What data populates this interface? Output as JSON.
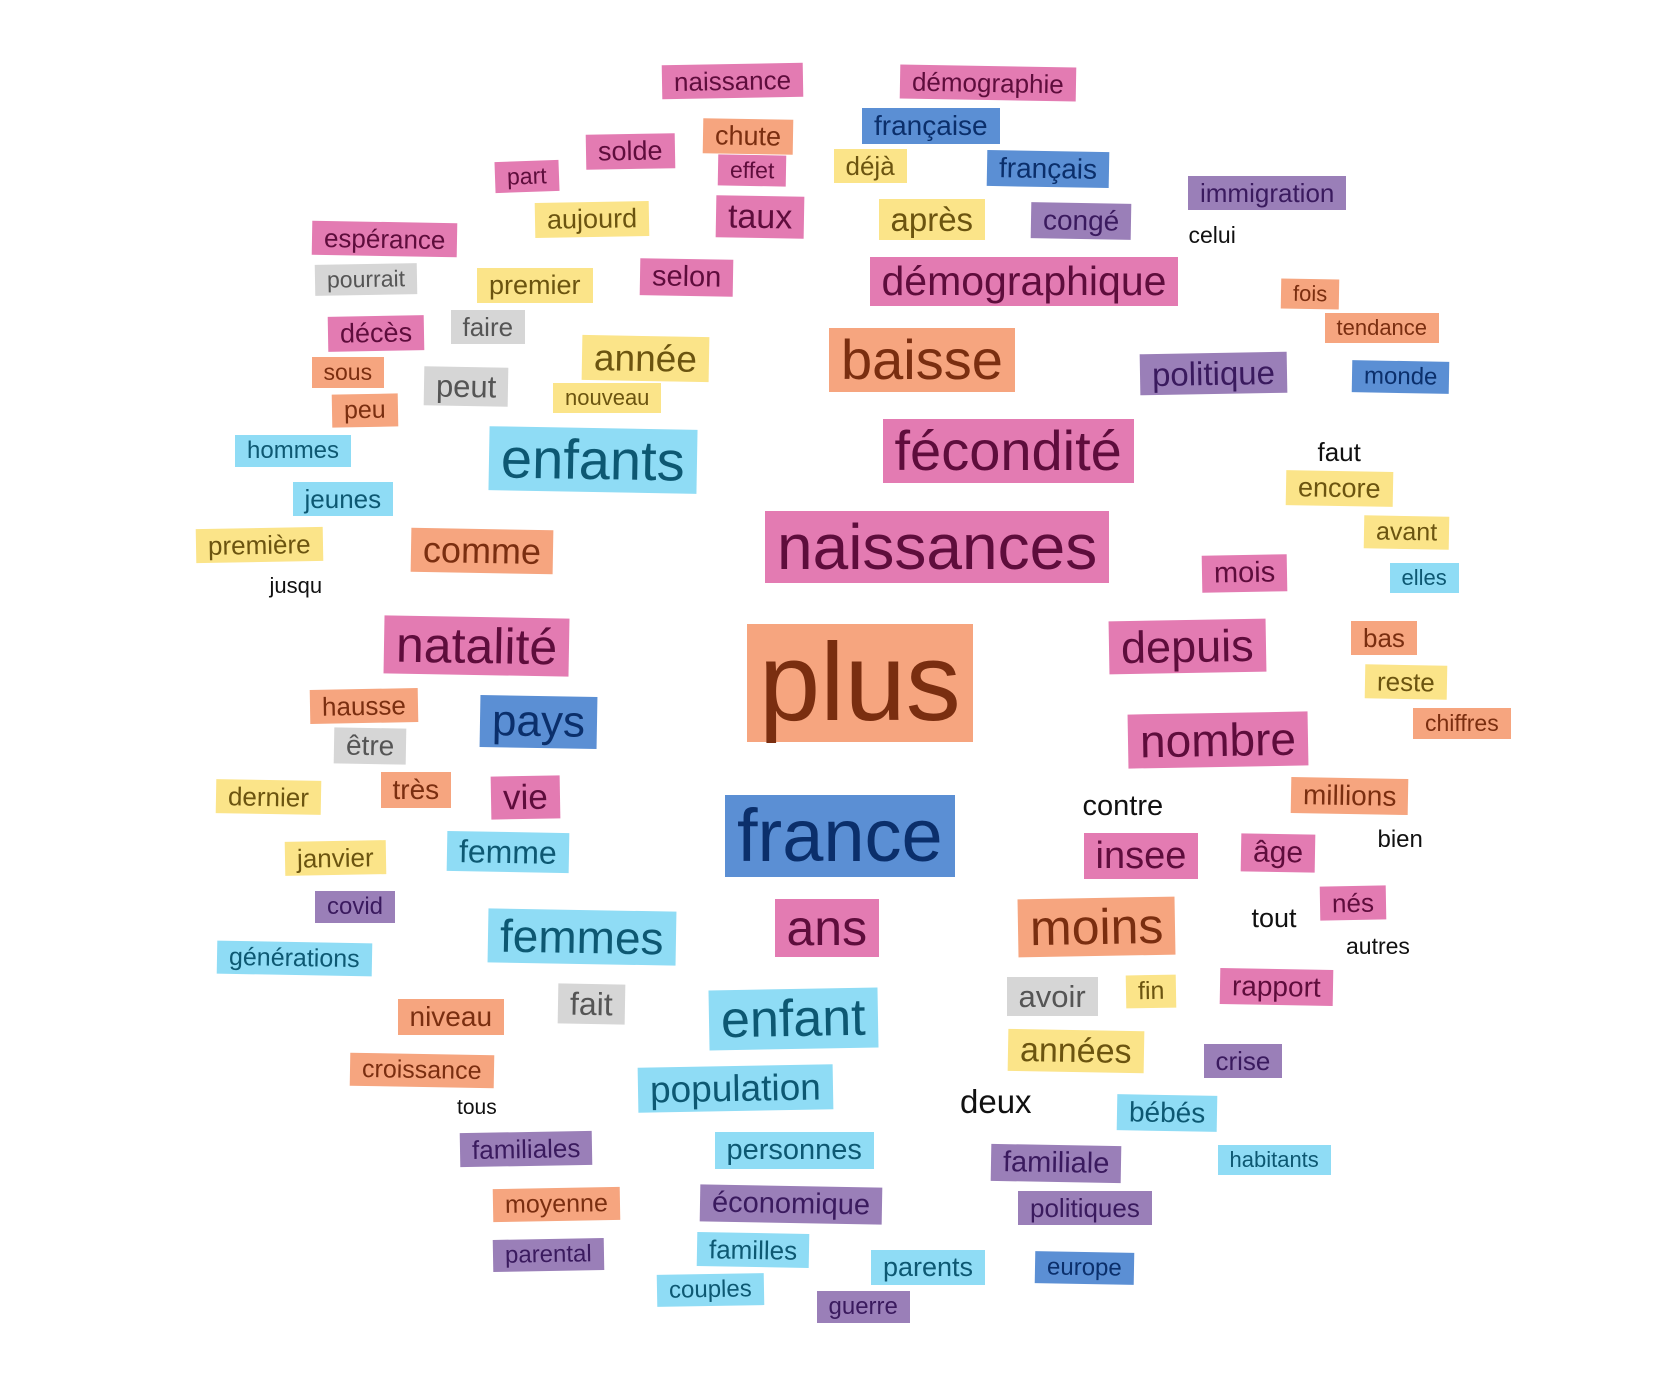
{
  "palette": {
    "pink": {
      "bg": "#e37bb2",
      "fg": "#5e0d3c"
    },
    "orange": {
      "bg": "#f6a57f",
      "fg": "#7a2e10"
    },
    "yellow": {
      "bg": "#fbe489",
      "fg": "#6b5410"
    },
    "blue": {
      "bg": "#5b8fd4",
      "fg": "#0b2f6b"
    },
    "cyan": {
      "bg": "#8fdcf5",
      "fg": "#0d5872"
    },
    "purple": {
      "bg": "#9a7fb8",
      "fg": "#3a1a5e"
    },
    "gray": {
      "bg": "#d6d6d6",
      "fg": "#555555"
    },
    "none": {
      "bg": "transparent",
      "fg": "#111111"
    }
  },
  "words": [
    {
      "text": "naissance",
      "color": "pink",
      "size": 26
    },
    {
      "text": "démographie",
      "color": "pink",
      "size": 26
    },
    {
      "text": "française",
      "color": "blue",
      "size": 28
    },
    {
      "text": "chute",
      "color": "orange",
      "size": 27
    },
    {
      "text": "solde",
      "color": "pink",
      "size": 27
    },
    {
      "text": "part",
      "color": "pink",
      "size": 23
    },
    {
      "text": "effet",
      "color": "pink",
      "size": 23
    },
    {
      "text": "déjà",
      "color": "yellow",
      "size": 26
    },
    {
      "text": "français",
      "color": "blue",
      "size": 28
    },
    {
      "text": "immigration",
      "color": "purple",
      "size": 26
    },
    {
      "text": "celui",
      "color": "none",
      "size": 23
    },
    {
      "text": "aujourd",
      "color": "yellow",
      "size": 27
    },
    {
      "text": "taux",
      "color": "pink",
      "size": 34
    },
    {
      "text": "après",
      "color": "yellow",
      "size": 33
    },
    {
      "text": "congé",
      "color": "purple",
      "size": 28
    },
    {
      "text": "espérance",
      "color": "pink",
      "size": 26
    },
    {
      "text": "pourrait",
      "color": "gray",
      "size": 23
    },
    {
      "text": "premier",
      "color": "yellow",
      "size": 27
    },
    {
      "text": "selon",
      "color": "pink",
      "size": 29
    },
    {
      "text": "démographique",
      "color": "pink",
      "size": 41
    },
    {
      "text": "fois",
      "color": "orange",
      "size": 22
    },
    {
      "text": "tendance",
      "color": "orange",
      "size": 22
    },
    {
      "text": "décès",
      "color": "pink",
      "size": 27
    },
    {
      "text": "faire",
      "color": "gray",
      "size": 26
    },
    {
      "text": "année",
      "color": "yellow",
      "size": 37
    },
    {
      "text": "baisse",
      "color": "orange",
      "size": 56
    },
    {
      "text": "politique",
      "color": "purple",
      "size": 33
    },
    {
      "text": "monde",
      "color": "blue",
      "size": 24
    },
    {
      "text": "sous",
      "color": "orange",
      "size": 23
    },
    {
      "text": "peut",
      "color": "gray",
      "size": 31
    },
    {
      "text": "nouveau",
      "color": "yellow",
      "size": 22
    },
    {
      "text": "peu",
      "color": "orange",
      "size": 25
    },
    {
      "text": "hommes",
      "color": "cyan",
      "size": 24
    },
    {
      "text": "enfants",
      "color": "cyan",
      "size": 56
    },
    {
      "text": "fécondité",
      "color": "pink",
      "size": 56
    },
    {
      "text": "faut",
      "color": "none",
      "size": 26
    },
    {
      "text": "encore",
      "color": "yellow",
      "size": 27
    },
    {
      "text": "jeunes",
      "color": "cyan",
      "size": 26
    },
    {
      "text": "première",
      "color": "yellow",
      "size": 26
    },
    {
      "text": "comme",
      "color": "orange",
      "size": 36
    },
    {
      "text": "naissances",
      "color": "pink",
      "size": 64
    },
    {
      "text": "avant",
      "color": "yellow",
      "size": 25
    },
    {
      "text": "mois",
      "color": "pink",
      "size": 29
    },
    {
      "text": "elles",
      "color": "cyan",
      "size": 22
    },
    {
      "text": "jusqu",
      "color": "none",
      "size": 22
    },
    {
      "text": "natalité",
      "color": "pink",
      "size": 50
    },
    {
      "text": "plus",
      "color": "orange",
      "size": 110
    },
    {
      "text": "depuis",
      "color": "pink",
      "size": 45
    },
    {
      "text": "bas",
      "color": "orange",
      "size": 26
    },
    {
      "text": "reste",
      "color": "yellow",
      "size": 26
    },
    {
      "text": "hausse",
      "color": "orange",
      "size": 26
    },
    {
      "text": "pays",
      "color": "blue",
      "size": 44
    },
    {
      "text": "chiffres",
      "color": "orange",
      "size": 23
    },
    {
      "text": "être",
      "color": "gray",
      "size": 28
    },
    {
      "text": "nombre",
      "color": "pink",
      "size": 46
    },
    {
      "text": "dernier",
      "color": "yellow",
      "size": 26
    },
    {
      "text": "très",
      "color": "orange",
      "size": 28
    },
    {
      "text": "vie",
      "color": "pink",
      "size": 35
    },
    {
      "text": "contre",
      "color": "none",
      "size": 29
    },
    {
      "text": "millions",
      "color": "orange",
      "size": 28
    },
    {
      "text": "france",
      "color": "blue",
      "size": 74
    },
    {
      "text": "bien",
      "color": "none",
      "size": 24
    },
    {
      "text": "janvier",
      "color": "yellow",
      "size": 26
    },
    {
      "text": "femme",
      "color": "cyan",
      "size": 32
    },
    {
      "text": "insee",
      "color": "pink",
      "size": 38
    },
    {
      "text": "âge",
      "color": "pink",
      "size": 30
    },
    {
      "text": "covid",
      "color": "purple",
      "size": 24
    },
    {
      "text": "tout",
      "color": "none",
      "size": 27
    },
    {
      "text": "nés",
      "color": "pink",
      "size": 26
    },
    {
      "text": "femmes",
      "color": "cyan",
      "size": 46
    },
    {
      "text": "ans",
      "color": "pink",
      "size": 50
    },
    {
      "text": "moins",
      "color": "orange",
      "size": 50
    },
    {
      "text": "générations",
      "color": "cyan",
      "size": 25
    },
    {
      "text": "autres",
      "color": "none",
      "size": 23
    },
    {
      "text": "fait",
      "color": "gray",
      "size": 32
    },
    {
      "text": "avoir",
      "color": "gray",
      "size": 31
    },
    {
      "text": "fin",
      "color": "yellow",
      "size": 25
    },
    {
      "text": "rapport",
      "color": "pink",
      "size": 28
    },
    {
      "text": "niveau",
      "color": "orange",
      "size": 28
    },
    {
      "text": "enfant",
      "color": "cyan",
      "size": 52
    },
    {
      "text": "années",
      "color": "yellow",
      "size": 34
    },
    {
      "text": "crise",
      "color": "purple",
      "size": 26
    },
    {
      "text": "croissance",
      "color": "orange",
      "size": 25
    },
    {
      "text": "population",
      "color": "cyan",
      "size": 37
    },
    {
      "text": "deux",
      "color": "none",
      "size": 33
    },
    {
      "text": "tous",
      "color": "none",
      "size": 21
    },
    {
      "text": "bébés",
      "color": "cyan",
      "size": 28
    },
    {
      "text": "familiales",
      "color": "purple",
      "size": 26
    },
    {
      "text": "personnes",
      "color": "cyan",
      "size": 29
    },
    {
      "text": "familiale",
      "color": "purple",
      "size": 29
    },
    {
      "text": "habitants",
      "color": "cyan",
      "size": 22
    },
    {
      "text": "moyenne",
      "color": "orange",
      "size": 25
    },
    {
      "text": "économique",
      "color": "purple",
      "size": 29
    },
    {
      "text": "politiques",
      "color": "purple",
      "size": 26
    },
    {
      "text": "parental",
      "color": "purple",
      "size": 24
    },
    {
      "text": "familles",
      "color": "cyan",
      "size": 26
    },
    {
      "text": "parents",
      "color": "cyan",
      "size": 27
    },
    {
      "text": "europe",
      "color": "blue",
      "size": 24
    },
    {
      "text": "couples",
      "color": "cyan",
      "size": 24
    },
    {
      "text": "guerre",
      "color": "purple",
      "size": 24
    }
  ]
}
